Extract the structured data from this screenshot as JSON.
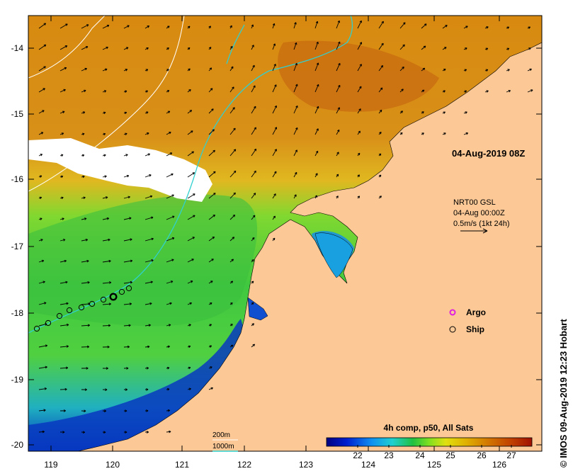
{
  "map": {
    "timestamp": "04-Aug-2019 08Z",
    "lon_ticks": [
      "119",
      "120",
      "121",
      "122",
      "123",
      "124",
      "125",
      "126"
    ],
    "lat_ticks": [
      "-14",
      "-15",
      "-16",
      "-17",
      "-18",
      "-19",
      "-20"
    ],
    "currents": {
      "line1": "NRT00 GSL",
      "line2": "04-Aug 00:00Z",
      "line3": "0.5m/s (1kt 24h)"
    },
    "legend": {
      "argo_label": "Argo",
      "ship_label": "Ship",
      "argo_color": "#e020e0",
      "ship_color": "#000000"
    },
    "isobaths": {
      "shallow_label": "200m",
      "deep_label": "1000m",
      "shallow_color": "#ffffff",
      "deep_color": "#30d0d0"
    },
    "colorbar": {
      "title": "4h comp, p50, All Sats",
      "ticks": [
        "22",
        "23",
        "24",
        "25",
        "26",
        "27"
      ]
    },
    "credit": "© IMOS 09-Aug-2019 12:23 Hobart",
    "colors": {
      "land": "#fbc896",
      "cloud": "#ffffff"
    }
  }
}
